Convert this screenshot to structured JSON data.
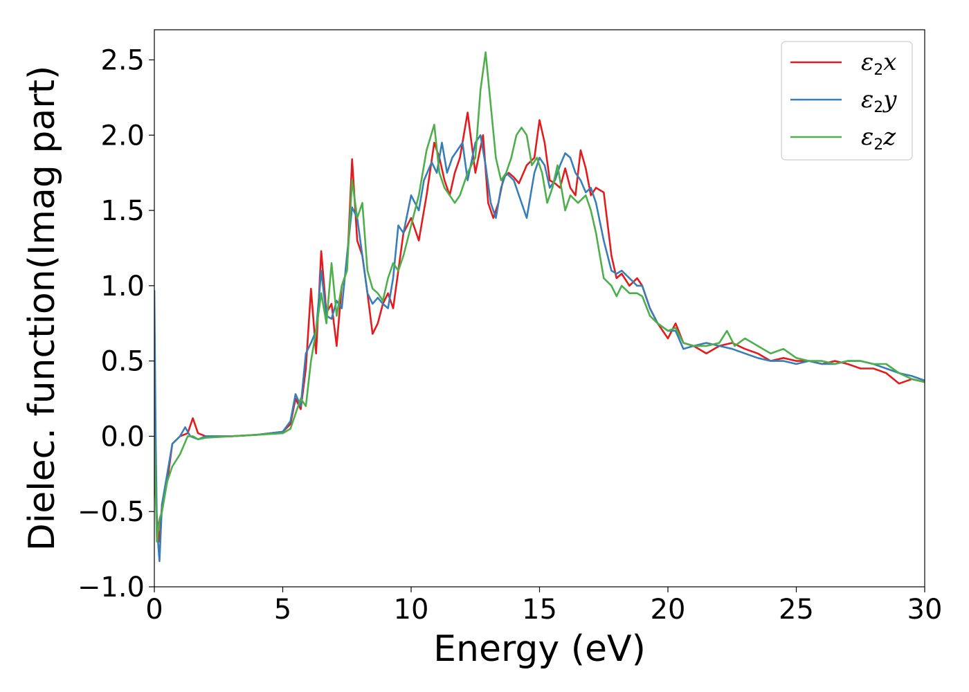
{
  "chart_data": {
    "type": "line",
    "title": "",
    "xlabel": "Energy (eV)",
    "ylabel": "Dielec. function(Imag part)",
    "xlim": [
      0,
      30
    ],
    "ylim": [
      -1.0,
      2.7
    ],
    "x_ticks": [
      0,
      5,
      10,
      15,
      20,
      25,
      30
    ],
    "x_tick_labels": [
      "0",
      "5",
      "10",
      "15",
      "20",
      "25",
      "30"
    ],
    "y_ticks": [
      -1.0,
      -0.5,
      0.0,
      0.5,
      1.0,
      1.5,
      2.0,
      2.5
    ],
    "y_tick_labels": [
      "−1.0",
      "−0.5",
      "0.0",
      "0.5",
      "1.0",
      "1.5",
      "2.0",
      "2.5"
    ],
    "grid": false,
    "legend_position": "top-right",
    "series": [
      {
        "name": "ε₂x",
        "legend_base": "ε",
        "legend_sub": "2",
        "legend_var": "x",
        "color": "#e41a1c",
        "x": [
          0.0,
          0.1,
          0.2,
          0.3,
          0.5,
          0.7,
          1.0,
          1.3,
          1.5,
          1.7,
          2.0,
          3.0,
          4.0,
          5.0,
          5.3,
          5.5,
          5.7,
          5.9,
          6.1,
          6.3,
          6.5,
          6.7,
          6.9,
          7.1,
          7.3,
          7.5,
          7.7,
          7.9,
          8.1,
          8.3,
          8.5,
          8.7,
          8.9,
          9.1,
          9.3,
          9.5,
          9.7,
          10.0,
          10.3,
          10.6,
          10.9,
          11.1,
          11.3,
          11.5,
          11.7,
          11.9,
          12.2,
          12.5,
          12.8,
          13.0,
          13.2,
          13.4,
          13.6,
          13.8,
          14.0,
          14.2,
          14.5,
          14.8,
          15.0,
          15.2,
          15.4,
          15.6,
          15.8,
          16.0,
          16.2,
          16.4,
          16.6,
          16.8,
          17.0,
          17.2,
          17.5,
          17.8,
          18.0,
          18.2,
          18.5,
          18.8,
          19.0,
          19.3,
          19.6,
          20.0,
          20.3,
          20.6,
          21.0,
          21.5,
          22.0,
          22.5,
          23.0,
          23.5,
          24.0,
          24.5,
          25.0,
          25.5,
          26.0,
          26.5,
          27.0,
          27.5,
          28.0,
          28.5,
          29.0,
          29.5,
          30.0
        ],
        "y": [
          -0.2,
          -0.55,
          -0.7,
          -0.45,
          -0.3,
          -0.05,
          0.0,
          0.02,
          0.12,
          0.02,
          0.0,
          0.0,
          0.01,
          0.03,
          0.08,
          0.25,
          0.18,
          0.45,
          0.98,
          0.55,
          1.23,
          0.82,
          0.88,
          0.6,
          1.0,
          1.1,
          1.84,
          1.3,
          1.2,
          0.95,
          0.68,
          0.75,
          0.88,
          0.95,
          0.85,
          1.1,
          1.35,
          1.45,
          1.3,
          1.6,
          1.95,
          1.85,
          1.7,
          1.6,
          1.75,
          1.85,
          2.15,
          1.75,
          2.0,
          1.55,
          1.45,
          1.55,
          1.72,
          1.75,
          1.72,
          1.68,
          1.8,
          1.85,
          2.1,
          1.95,
          1.7,
          1.68,
          1.65,
          1.78,
          1.65,
          1.6,
          1.9,
          1.78,
          1.6,
          1.65,
          1.62,
          1.2,
          1.05,
          1.08,
          1.0,
          1.05,
          1.0,
          0.85,
          0.75,
          0.65,
          0.75,
          0.62,
          0.6,
          0.55,
          0.6,
          0.62,
          0.58,
          0.55,
          0.5,
          0.52,
          0.5,
          0.5,
          0.48,
          0.5,
          0.48,
          0.45,
          0.45,
          0.42,
          0.35,
          0.38,
          0.36
        ]
      },
      {
        "name": "ε₂y",
        "legend_base": "ε",
        "legend_sub": "2",
        "legend_var": "y",
        "color": "#377eb8",
        "x": [
          0.0,
          0.05,
          0.1,
          0.2,
          0.3,
          0.5,
          0.7,
          1.0,
          1.2,
          1.4,
          1.7,
          2.0,
          3.0,
          4.0,
          5.0,
          5.3,
          5.5,
          5.7,
          5.9,
          6.1,
          6.3,
          6.5,
          6.7,
          6.9,
          7.1,
          7.3,
          7.5,
          7.7,
          7.9,
          8.1,
          8.3,
          8.5,
          8.7,
          8.9,
          9.1,
          9.3,
          9.5,
          9.7,
          10.0,
          10.3,
          10.5,
          10.8,
          11.0,
          11.2,
          11.4,
          11.6,
          11.8,
          12.0,
          12.2,
          12.5,
          12.7,
          12.9,
          13.1,
          13.3,
          13.5,
          13.7,
          14.0,
          14.2,
          14.5,
          14.8,
          15.0,
          15.2,
          15.4,
          15.6,
          15.8,
          16.0,
          16.2,
          16.4,
          16.6,
          16.8,
          17.0,
          17.2,
          17.5,
          17.8,
          18.0,
          18.2,
          18.5,
          18.8,
          19.0,
          19.3,
          19.6,
          20.0,
          20.3,
          20.6,
          21.0,
          21.5,
          22.0,
          22.5,
          23.0,
          23.5,
          24.0,
          24.5,
          25.0,
          25.5,
          26.0,
          26.5,
          27.0,
          27.5,
          28.0,
          28.5,
          29.0,
          29.5,
          30.0
        ],
        "y": [
          0.97,
          0.0,
          -0.6,
          -0.83,
          -0.45,
          -0.25,
          -0.05,
          0.0,
          0.06,
          0.0,
          -0.02,
          0.0,
          0.0,
          0.01,
          0.03,
          0.1,
          0.28,
          0.2,
          0.55,
          0.62,
          0.7,
          1.1,
          0.8,
          0.78,
          0.9,
          0.85,
          1.2,
          1.52,
          1.45,
          1.2,
          0.95,
          0.88,
          0.92,
          0.88,
          0.85,
          1.05,
          1.4,
          1.35,
          1.6,
          1.5,
          1.7,
          1.82,
          1.75,
          1.95,
          1.75,
          1.85,
          1.9,
          1.95,
          1.7,
          1.95,
          2.0,
          1.8,
          1.55,
          1.45,
          1.65,
          1.75,
          1.7,
          1.6,
          1.45,
          1.75,
          1.85,
          1.8,
          1.65,
          1.7,
          1.8,
          1.88,
          1.85,
          1.75,
          1.7,
          1.62,
          1.65,
          1.55,
          1.3,
          1.1,
          1.08,
          1.1,
          1.05,
          1.0,
          1.0,
          0.85,
          0.75,
          0.7,
          0.7,
          0.58,
          0.6,
          0.62,
          0.6,
          0.58,
          0.55,
          0.52,
          0.5,
          0.5,
          0.48,
          0.5,
          0.48,
          0.48,
          0.5,
          0.5,
          0.48,
          0.45,
          0.42,
          0.4,
          0.37
        ]
      },
      {
        "name": "ε₂z",
        "legend_base": "ε",
        "legend_sub": "2",
        "legend_var": "z",
        "color": "#4daf4a",
        "x": [
          0.0,
          0.1,
          0.2,
          0.3,
          0.5,
          0.7,
          1.0,
          1.3,
          1.5,
          1.7,
          2.0,
          3.0,
          4.0,
          5.0,
          5.3,
          5.5,
          5.7,
          5.9,
          6.1,
          6.3,
          6.5,
          6.7,
          6.9,
          7.1,
          7.3,
          7.5,
          7.7,
          7.9,
          8.1,
          8.3,
          8.5,
          8.7,
          8.9,
          9.1,
          9.3,
          9.5,
          9.7,
          10.0,
          10.3,
          10.6,
          10.9,
          11.1,
          11.3,
          11.5,
          11.7,
          11.9,
          12.2,
          12.5,
          12.7,
          12.9,
          13.1,
          13.3,
          13.5,
          13.7,
          13.9,
          14.1,
          14.3,
          14.5,
          14.7,
          14.9,
          15.1,
          15.3,
          15.5,
          15.7,
          16.0,
          16.2,
          16.5,
          16.8,
          17.0,
          17.2,
          17.5,
          17.8,
          18.0,
          18.2,
          18.5,
          18.8,
          19.0,
          19.3,
          19.6,
          20.0,
          20.3,
          20.6,
          21.0,
          21.5,
          22.0,
          22.3,
          22.6,
          23.0,
          23.5,
          24.0,
          24.5,
          25.0,
          25.5,
          26.0,
          26.5,
          27.0,
          27.5,
          28.0,
          28.5,
          29.0,
          29.5,
          30.0
        ],
        "y": [
          0.0,
          -0.7,
          -0.55,
          -0.5,
          -0.3,
          -0.2,
          -0.12,
          0.0,
          0.0,
          -0.02,
          -0.01,
          0.0,
          0.01,
          0.02,
          0.05,
          0.15,
          0.25,
          0.2,
          0.5,
          0.7,
          0.95,
          0.75,
          1.15,
          0.8,
          1.0,
          1.1,
          1.7,
          1.45,
          1.55,
          1.1,
          0.98,
          0.95,
          0.9,
          1.05,
          1.15,
          1.1,
          1.2,
          1.4,
          1.6,
          1.9,
          2.07,
          1.75,
          1.65,
          1.6,
          1.55,
          1.6,
          1.75,
          1.85,
          2.3,
          2.55,
          2.2,
          1.85,
          1.7,
          1.75,
          1.85,
          2.0,
          2.05,
          2.0,
          1.8,
          1.85,
          1.75,
          1.55,
          1.65,
          1.8,
          1.5,
          1.6,
          1.55,
          1.6,
          1.5,
          1.35,
          1.05,
          1.0,
          0.93,
          1.0,
          0.95,
          0.95,
          0.93,
          0.8,
          0.75,
          0.7,
          0.72,
          0.62,
          0.6,
          0.6,
          0.62,
          0.7,
          0.6,
          0.65,
          0.6,
          0.55,
          0.58,
          0.52,
          0.5,
          0.5,
          0.48,
          0.5,
          0.5,
          0.48,
          0.48,
          0.42,
          0.38,
          0.36
        ]
      }
    ]
  }
}
